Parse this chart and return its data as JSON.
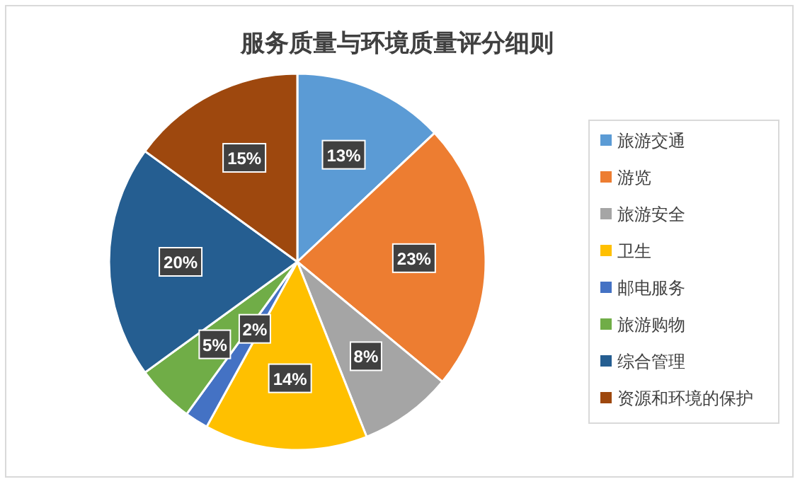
{
  "chart_data": {
    "type": "pie",
    "title": "服务质量与环境质量评分细则",
    "categories": [
      "旅游交通",
      "游览",
      "旅游安全",
      "卫生",
      "邮电服务",
      "旅游购物",
      "综合管理",
      "资源和环境的保护"
    ],
    "values": [
      13,
      23,
      8,
      14,
      2,
      5,
      20,
      15
    ],
    "colors": [
      "#5b9bd5",
      "#ed7d31",
      "#a5a5a5",
      "#ffc000",
      "#4472c4",
      "#70ad47",
      "#255e91",
      "#9e480e"
    ],
    "value_labels": [
      "13%",
      "23%",
      "8%",
      "14%",
      "2%",
      "5%",
      "20%",
      "15%"
    ],
    "legend": "right"
  }
}
